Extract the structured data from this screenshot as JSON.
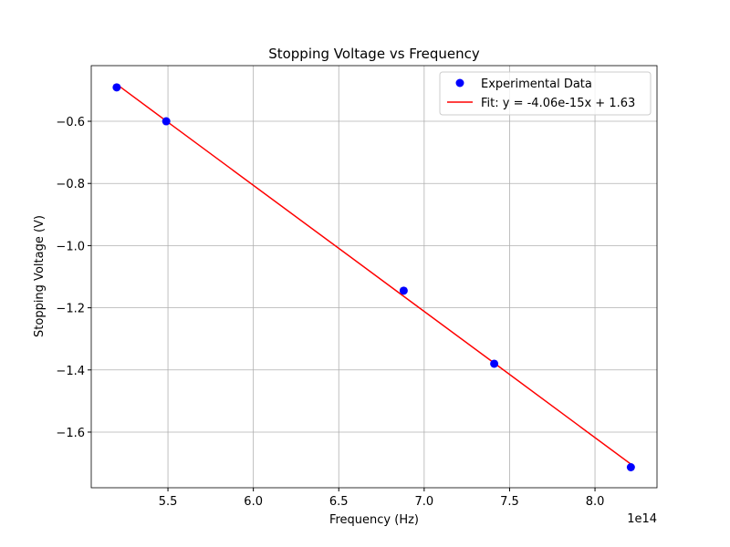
{
  "chart_data": {
    "type": "scatter",
    "title": "Stopping Voltage vs Frequency",
    "x_label": "Frequency (Hz)",
    "y_label": "Stopping Voltage (V)",
    "x_offset_label": "1e14",
    "x": [
      520000000000000.0,
      549000000000000.0,
      688000000000000.0,
      741000000000000.0,
      821000000000000.0
    ],
    "series": [
      {
        "name": "Experimental Data",
        "kind": "scatter",
        "color": "#0000ff",
        "values": [
          -0.491,
          -0.6,
          -1.145,
          -1.38,
          -1.713
        ]
      },
      {
        "name": "Fit: y = -4.06e-15x + 1.63",
        "kind": "line",
        "color": "#ff0000",
        "values": [
          -0.481,
          -0.599,
          -1.163,
          -1.378,
          -1.703
        ]
      }
    ],
    "xlim": [
      505100000000000.0,
      836300000000000.0
    ],
    "ylim": [
      -1.779,
      -0.421
    ],
    "xticks": [
      {
        "value": 550000000000000.0,
        "label": "5.5"
      },
      {
        "value": 600000000000000.0,
        "label": "6.0"
      },
      {
        "value": 650000000000000.0,
        "label": "6.5"
      },
      {
        "value": 700000000000000.0,
        "label": "7.0"
      },
      {
        "value": 750000000000000.0,
        "label": "7.5"
      },
      {
        "value": 800000000000000.0,
        "label": "8.0"
      }
    ],
    "yticks": [
      {
        "value": -0.6,
        "label": "−0.6"
      },
      {
        "value": -0.8,
        "label": "−0.8"
      },
      {
        "value": -1.0,
        "label": "−1.0"
      },
      {
        "value": -1.2,
        "label": "−1.2"
      },
      {
        "value": -1.4,
        "label": "−1.4"
      },
      {
        "value": -1.6,
        "label": "−1.6"
      }
    ],
    "grid": true,
    "legend": "upper right"
  }
}
